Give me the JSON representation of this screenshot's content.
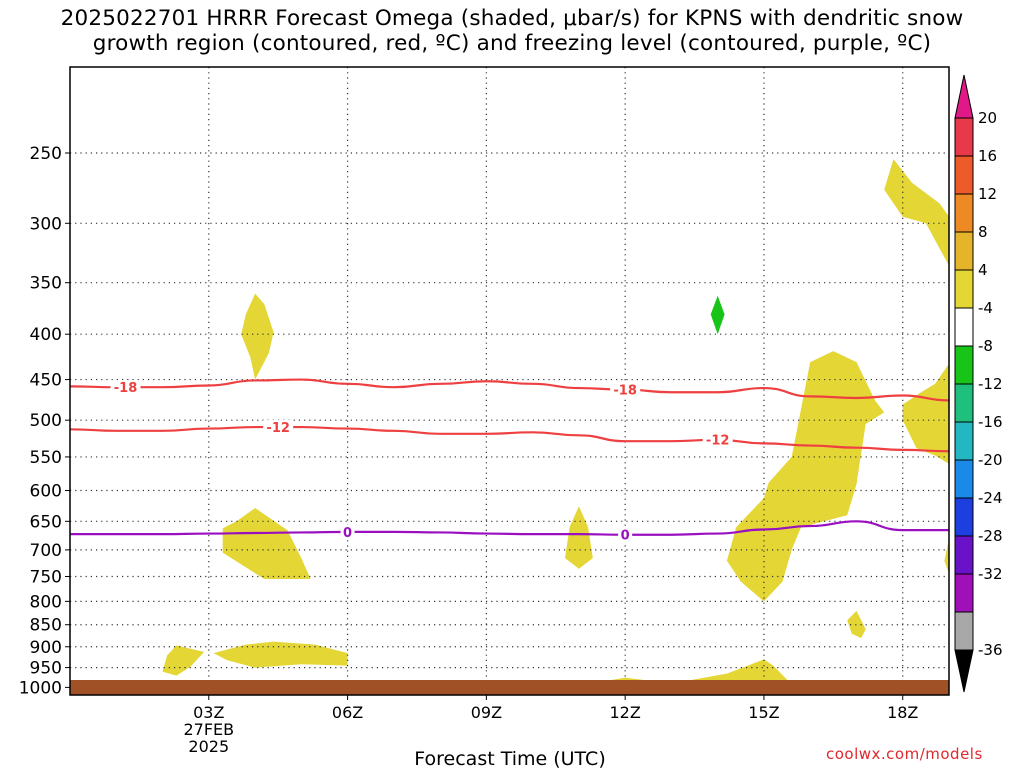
{
  "chart_data": {
    "type": "heatmap",
    "title_lines": [
      "2025022701 HRRR Forecast Omega (shaded, μbar/s) for KPNS with dendritic snow",
      "growth region (contoured, red, ºC) and freezing level (contoured, purple, ºC)"
    ],
    "xlabel": "Forecast Time (UTC)",
    "x_ticks": [
      {
        "hour": 3,
        "label": "03Z",
        "sublines": [
          "27FEB",
          "2025"
        ]
      },
      {
        "hour": 6,
        "label": "06Z",
        "sublines": []
      },
      {
        "hour": 9,
        "label": "09Z",
        "sublines": []
      },
      {
        "hour": 12,
        "label": "12Z",
        "sublines": []
      },
      {
        "hour": 15,
        "label": "15Z",
        "sublines": []
      },
      {
        "hour": 18,
        "label": "18Z",
        "sublines": []
      }
    ],
    "xlim": [
      0,
      19
    ],
    "y_ticks": [
      250,
      300,
      350,
      400,
      450,
      500,
      550,
      600,
      650,
      700,
      750,
      800,
      850,
      900,
      950,
      1000
    ],
    "ylim_hpa": [
      200,
      1020
    ],
    "y_scale": "log",
    "grid": "dotted",
    "colorbar": {
      "labels": [
        "20",
        "16",
        "12",
        "8",
        "4",
        "-4",
        "-8",
        "-12",
        "-16",
        "-20",
        "-24",
        "-28",
        "-32",
        "-36"
      ],
      "colors": [
        "#e8394a",
        "#ee5a2a",
        "#ee8a24",
        "#e6b42a",
        "#e4d635",
        "#ffffff",
        "#19c419",
        "#1fbf7e",
        "#22b7c2",
        "#1a8ae8",
        "#1e3fe0",
        "#6a12c8",
        "#a010b8",
        "#a8a8a8"
      ],
      "top_arrow": "#e01888",
      "bottom_arrow": "#000000"
    },
    "omega_areas": [
      {
        "color": "#e4d635",
        "value": "4 to 8",
        "points": [
          [
            4.0,
            360
          ],
          [
            4.2,
            370
          ],
          [
            4.4,
            398
          ],
          [
            4.3,
            420
          ],
          [
            4.0,
            450
          ],
          [
            3.9,
            425
          ],
          [
            3.7,
            400
          ],
          [
            3.8,
            380
          ]
        ]
      },
      {
        "color": "#e4d635",
        "value": "4 to 8",
        "points": [
          [
            3.3,
            662
          ],
          [
            3.6,
            650
          ],
          [
            4.0,
            628
          ],
          [
            4.7,
            665
          ],
          [
            5.0,
            715
          ],
          [
            5.2,
            755
          ],
          [
            4.2,
            755
          ],
          [
            3.3,
            705
          ]
        ]
      },
      {
        "color": "#e4d635",
        "value": "4 to 8",
        "points": [
          [
            2.3,
            897
          ],
          [
            2.9,
            912
          ],
          [
            2.6,
            948
          ],
          [
            2.3,
            970
          ],
          [
            2.0,
            960
          ],
          [
            2.1,
            920
          ]
        ]
      },
      {
        "color": "#e4d635",
        "value": "4 to 8",
        "points": [
          [
            3.1,
            915
          ],
          [
            3.8,
            895
          ],
          [
            4.4,
            888
          ],
          [
            5.3,
            895
          ],
          [
            6.0,
            915
          ],
          [
            6.0,
            945
          ],
          [
            5.0,
            942
          ],
          [
            4.0,
            950
          ],
          [
            3.4,
            932
          ]
        ]
      },
      {
        "color": "#e4d635",
        "value": "4 to 8",
        "points": [
          [
            11.0,
            625
          ],
          [
            11.2,
            660
          ],
          [
            11.3,
            715
          ],
          [
            11.0,
            735
          ],
          [
            10.7,
            715
          ],
          [
            10.8,
            660
          ]
        ]
      },
      {
        "color": "#e4d635",
        "value": "4 to 8",
        "points": [
          [
            16.5,
            418
          ],
          [
            17.0,
            430
          ],
          [
            17.4,
            475
          ],
          [
            17.6,
            490
          ],
          [
            17.2,
            505
          ],
          [
            17.0,
            590
          ],
          [
            16.8,
            640
          ],
          [
            15.8,
            660
          ],
          [
            15.6,
            700
          ],
          [
            15.4,
            760
          ],
          [
            15.0,
            800
          ],
          [
            14.5,
            760
          ],
          [
            14.2,
            720
          ],
          [
            14.4,
            660
          ],
          [
            15.0,
            612
          ],
          [
            15.1,
            588
          ],
          [
            15.6,
            550
          ],
          [
            16.0,
            430
          ]
        ]
      },
      {
        "color": "#e4d635",
        "value": "4 to 8",
        "points": [
          [
            17.8,
            254
          ],
          [
            18.2,
            270
          ],
          [
            18.8,
            285
          ],
          [
            19.0,
            295
          ],
          [
            19.0,
            335
          ],
          [
            18.5,
            300
          ],
          [
            18.0,
            295
          ],
          [
            17.6,
            275
          ]
        ]
      },
      {
        "color": "#e4d635",
        "value": "4 to 8",
        "points": [
          [
            19.0,
            432
          ],
          [
            19.0,
            560
          ],
          [
            18.7,
            548
          ],
          [
            18.3,
            538
          ],
          [
            18.0,
            500
          ],
          [
            18.0,
            480
          ],
          [
            18.4,
            465
          ],
          [
            18.7,
            455
          ]
        ]
      },
      {
        "color": "#e4d635",
        "value": "4 to 8",
        "points": [
          [
            17.0,
            820
          ],
          [
            17.2,
            860
          ],
          [
            17.1,
            880
          ],
          [
            16.9,
            870
          ],
          [
            16.8,
            840
          ]
        ]
      },
      {
        "color": "#e4d635",
        "value": "4 to 8",
        "points": [
          [
            19.0,
            680
          ],
          [
            19.0,
            745
          ],
          [
            18.9,
            720
          ]
        ]
      },
      {
        "color": "#e4d635",
        "value": "4 to 8",
        "points": [
          [
            11.5,
            985
          ],
          [
            12.0,
            975
          ],
          [
            13.0,
            990
          ],
          [
            14.2,
            965
          ],
          [
            15.0,
            930
          ],
          [
            15.2,
            945
          ],
          [
            15.5,
            980
          ],
          [
            15.5,
            1000
          ],
          [
            14.0,
            1005
          ],
          [
            12.5,
            1003
          ],
          [
            11.2,
            998
          ]
        ]
      }
    ],
    "negative_omega_areas": [
      {
        "color": "#19c419",
        "value": "-4 to -8",
        "points": [
          [
            14.0,
            362
          ],
          [
            14.15,
            380
          ],
          [
            14.0,
            400
          ],
          [
            13.85,
            380
          ]
        ]
      }
    ],
    "series": [
      {
        "name": "-18",
        "color": "#ee4040",
        "x": [
          0,
          1,
          2,
          3,
          4,
          5,
          6,
          7,
          8,
          9,
          10,
          11,
          12,
          13,
          14,
          15,
          16,
          17,
          18,
          19
        ],
        "y": [
          458,
          459,
          459,
          457,
          451,
          450,
          455,
          459,
          455,
          452,
          455,
          460,
          462,
          465,
          465,
          460,
          470,
          472,
          469,
          475
        ],
        "labels_at": [
          1.2,
          12.0
        ]
      },
      {
        "name": "-12",
        "color": "#ee4040",
        "x": [
          0,
          1,
          2,
          3,
          4,
          5,
          6,
          7,
          8,
          9,
          10,
          11,
          12,
          13,
          14,
          15,
          16,
          17,
          18,
          19
        ],
        "y": [
          512,
          514,
          514,
          511,
          509,
          509,
          511,
          514,
          518,
          518,
          516,
          520,
          528,
          528,
          526,
          531,
          534,
          537,
          540,
          542
        ],
        "labels_at": [
          4.5,
          14.0
        ]
      },
      {
        "name": "0",
        "color": "#9a10c0",
        "x": [
          0,
          1,
          2,
          3,
          4,
          5,
          6,
          7,
          8,
          9,
          10,
          11,
          12,
          13,
          14,
          15,
          16,
          17,
          18,
          19
        ],
        "y": [
          672,
          672,
          672,
          671,
          670,
          669,
          668,
          668,
          669,
          671,
          672,
          672,
          673,
          673,
          671,
          664,
          658,
          650,
          665,
          665
        ],
        "labels_at": [
          6.0,
          12.0
        ]
      }
    ],
    "ground_color": "#a05226"
  },
  "credit": "coolwx.com/models"
}
